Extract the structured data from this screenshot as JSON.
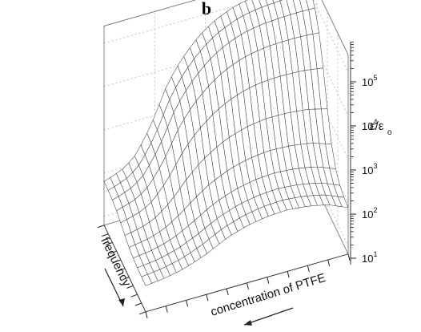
{
  "panel_label": "b",
  "chart_data": {
    "type": "surface",
    "z_label": "ε/ε",
    "z_label_sub": "o",
    "x_label": "frequency",
    "y_label": "concentration of PTFE",
    "z_scale": "log",
    "z_tick_base": "10",
    "z_ticks": [
      1,
      2,
      3,
      4,
      5
    ],
    "zlim_log10": [
      0.8,
      5.4
    ],
    "grid": true,
    "frequency_grid_lines": 11,
    "ptfe_grid_lines": 34,
    "surface_log10": {
      "frequency_axis": [
        0,
        1
      ],
      "ptfe_axis": [
        0,
        1
      ],
      "back_profile_log10": [
        [
          0.0,
          1.82
        ],
        [
          0.05,
          1.9
        ],
        [
          0.1,
          2.0
        ],
        [
          0.15,
          2.2
        ],
        [
          0.2,
          2.55
        ],
        [
          0.25,
          3.0
        ],
        [
          0.3,
          3.55
        ],
        [
          0.35,
          3.95
        ],
        [
          0.4,
          4.25
        ],
        [
          0.45,
          4.5
        ],
        [
          0.5,
          4.7
        ],
        [
          0.55,
          4.85
        ],
        [
          0.6,
          4.96
        ],
        [
          0.65,
          5.05
        ],
        [
          0.7,
          5.1
        ],
        [
          0.75,
          5.14
        ],
        [
          0.8,
          5.16
        ],
        [
          0.85,
          5.18
        ],
        [
          0.9,
          5.19
        ],
        [
          0.95,
          5.2
        ],
        [
          1.0,
          5.2
        ]
      ],
      "front_profile_log10": [
        [
          0.0,
          1.4
        ],
        [
          0.1,
          1.45
        ],
        [
          0.2,
          1.55
        ],
        [
          0.3,
          1.72
        ],
        [
          0.4,
          1.95
        ],
        [
          0.5,
          2.1
        ],
        [
          0.6,
          2.18
        ],
        [
          0.7,
          2.2
        ],
        [
          0.8,
          2.15
        ],
        [
          0.9,
          2.05
        ],
        [
          1.0,
          1.85
        ]
      ]
    }
  }
}
